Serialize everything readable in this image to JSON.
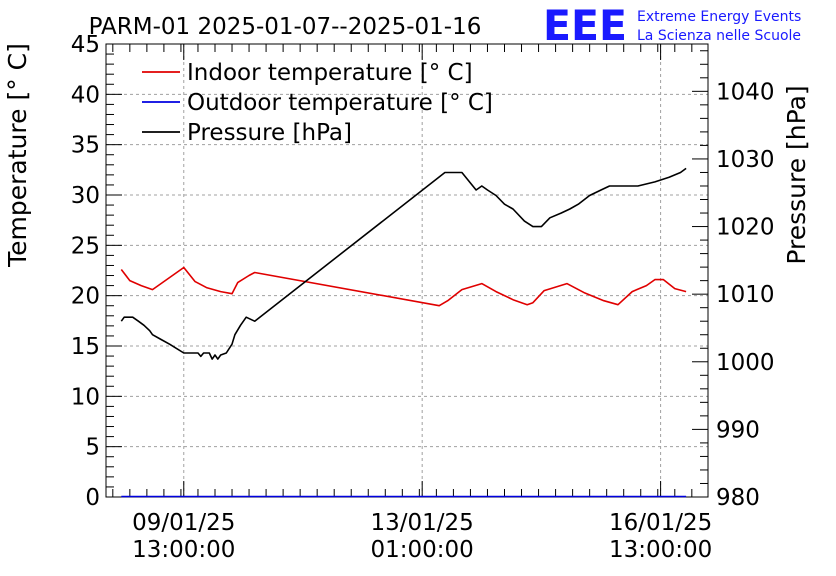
{
  "header": {
    "title": "PARM-01 2025-01-07--2025-01-16",
    "logo_text": "EEE",
    "logo_line1": "Extreme Energy Events",
    "logo_line2": "La Scienza nelle Scuole"
  },
  "colors": {
    "indoor": "#e00000",
    "outdoor": "#0000e0",
    "pressure": "#000000",
    "logo": "#1a1aff",
    "grid": "#a0a0a0"
  },
  "chart_data": {
    "type": "line",
    "title": "PARM-01 2025-01-07--2025-01-16",
    "ylabel": "Temperature [° C]",
    "y2label": "Pressure [hPa]",
    "ylim": [
      0,
      45
    ],
    "y2lim": [
      980,
      1047
    ],
    "xlim": [
      "08/01/25 09:36",
      "17/01/25 05:42"
    ],
    "x_ticks": [
      {
        "x": "09/01/25 13:00:00",
        "line1": "09/01/25",
        "line2": "13:00:00"
      },
      {
        "x": "13/01/25 01:00:00",
        "line1": "13/01/25",
        "line2": "01:00:00"
      },
      {
        "x": "16/01/25 13:00:00",
        "line1": "16/01/25",
        "line2": "13:00:00"
      }
    ],
    "y_ticks": [
      0,
      5,
      10,
      15,
      20,
      25,
      30,
      35,
      40,
      45
    ],
    "y2_ticks": [
      980,
      990,
      1000,
      1010,
      1020,
      1030,
      1040
    ],
    "grid": true,
    "legend_position": "top-left",
    "series": [
      {
        "name": "Indoor temperature [° C]",
        "axis": "left",
        "points": [
          [
            "08/01/25 15:00",
            22.6
          ],
          [
            "08/01/25 18:00",
            21.5
          ],
          [
            "08/01/25 22:00",
            21.0
          ],
          [
            "09/01/25 02:00",
            20.6
          ],
          [
            "09/01/25 13:00",
            22.8
          ],
          [
            "09/01/25 17:00",
            21.4
          ],
          [
            "09/01/25 21:00",
            20.8
          ],
          [
            "10/01/25 02:00",
            20.4
          ],
          [
            "10/01/25 06:00",
            20.2
          ],
          [
            "10/01/25 08:00",
            21.3
          ],
          [
            "10/01/25 12:00",
            22.0
          ],
          [
            "10/01/25 14:00",
            22.3
          ],
          [
            "13/01/25 07:00",
            19.0
          ],
          [
            "13/01/25 10:00",
            19.5
          ],
          [
            "13/01/25 15:00",
            20.6
          ],
          [
            "13/01/25 22:00",
            21.2
          ],
          [
            "14/01/25 03:00",
            20.4
          ],
          [
            "14/01/25 09:00",
            19.6
          ],
          [
            "14/01/25 14:00",
            19.1
          ],
          [
            "14/01/25 16:00",
            19.3
          ],
          [
            "14/01/25 20:00",
            20.5
          ],
          [
            "15/01/25 04:00",
            21.2
          ],
          [
            "15/01/25 10:00",
            20.3
          ],
          [
            "15/01/25 17:00",
            19.5
          ],
          [
            "15/01/25 22:00",
            19.1
          ],
          [
            "16/01/25 03:00",
            20.4
          ],
          [
            "16/01/25 08:00",
            21.0
          ],
          [
            "16/01/25 11:00",
            21.6
          ],
          [
            "16/01/25 14:00",
            21.6
          ],
          [
            "16/01/25 18:00",
            20.7
          ],
          [
            "16/01/25 22:00",
            20.4
          ]
        ]
      },
      {
        "name": "Outdoor temperature [° C]",
        "axis": "left",
        "points": [
          [
            "08/01/25 15:00",
            0.05
          ],
          [
            "16/01/25 22:00",
            0.05
          ]
        ]
      },
      {
        "name": "Pressure [hPa]",
        "axis": "right",
        "points": [
          [
            "08/01/25 15:00",
            1006.0
          ],
          [
            "08/01/25 16:00",
            1006.6
          ],
          [
            "08/01/25 19:00",
            1006.6
          ],
          [
            "08/01/25 21:00",
            1006.0
          ],
          [
            "08/01/25 23:00",
            1005.4
          ],
          [
            "09/01/25 01:00",
            1004.6
          ],
          [
            "09/01/25 02:00",
            1004.0
          ],
          [
            "09/01/25 05:00",
            1003.3
          ],
          [
            "09/01/25 08:00",
            1002.6
          ],
          [
            "09/01/25 13:00",
            1001.3
          ],
          [
            "09/01/25 18:00",
            1001.3
          ],
          [
            "09/01/25 19:00",
            1000.8
          ],
          [
            "09/01/25 20:00",
            1001.3
          ],
          [
            "09/01/25 22:00",
            1001.3
          ],
          [
            "09/01/25 23:00",
            1000.4
          ],
          [
            "10/01/25 00:00",
            1001.0
          ],
          [
            "10/01/25 01:00",
            1000.4
          ],
          [
            "10/01/25 02:00",
            1001.0
          ],
          [
            "10/01/25 04:00",
            1001.3
          ],
          [
            "10/01/25 06:00",
            1002.6
          ],
          [
            "10/01/25 07:00",
            1004.0
          ],
          [
            "10/01/25 09:00",
            1005.4
          ],
          [
            "10/01/25 11:00",
            1006.6
          ],
          [
            "10/01/25 14:00",
            1006.0
          ],
          [
            "13/01/25 09:00",
            1028.0
          ],
          [
            "13/01/25 15:00",
            1028.0
          ],
          [
            "13/01/25 20:00",
            1025.4
          ],
          [
            "13/01/25 22:00",
            1026.0
          ],
          [
            "14/01/25 00:00",
            1025.4
          ],
          [
            "14/01/25 03:00",
            1024.6
          ],
          [
            "14/01/25 06:00",
            1023.3
          ],
          [
            "14/01/25 09:00",
            1022.6
          ],
          [
            "14/01/25 13:00",
            1020.8
          ],
          [
            "14/01/25 16:00",
            1020.0
          ],
          [
            "14/01/25 19:00",
            1020.0
          ],
          [
            "14/01/25 22:00",
            1021.3
          ],
          [
            "15/01/25 02:00",
            1022.0
          ],
          [
            "15/01/25 05:00",
            1022.6
          ],
          [
            "15/01/25 08:00",
            1023.3
          ],
          [
            "15/01/25 12:00",
            1024.6
          ],
          [
            "15/01/25 16:00",
            1025.4
          ],
          [
            "15/01/25 19:00",
            1026.0
          ],
          [
            "16/01/25 00:00",
            1026.0
          ],
          [
            "16/01/25 05:00",
            1026.0
          ],
          [
            "16/01/25 11:00",
            1026.6
          ],
          [
            "16/01/25 16:00",
            1027.3
          ],
          [
            "16/01/25 20:00",
            1028.0
          ],
          [
            "16/01/25 22:00",
            1028.6
          ]
        ]
      }
    ]
  }
}
